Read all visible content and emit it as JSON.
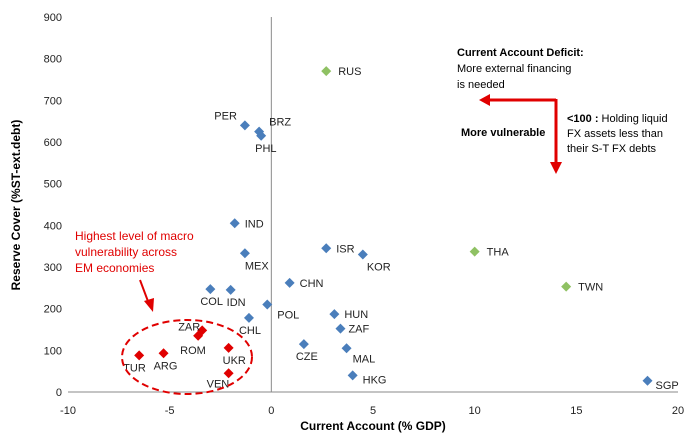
{
  "chart_data": {
    "type": "scatter",
    "xlabel": "Current Account (% GDP)",
    "ylabel": "Reserve Cover (%ST-ext.debt)",
    "xlim": [
      -10,
      20
    ],
    "ylim": [
      0,
      900
    ],
    "x_ticks": [
      "-10",
      "-5",
      "0",
      "5",
      "10",
      "15",
      "20"
    ],
    "y_ticks": [
      "0",
      "100",
      "200",
      "300",
      "400",
      "500",
      "600",
      "700",
      "800",
      "900"
    ],
    "grid": false,
    "colors": {
      "blue": "#4a7ebb",
      "green": "#8fc163",
      "red": "#e00000",
      "line": "#8a8a8a"
    },
    "points": [
      {
        "label": "RUS",
        "x": 2.7,
        "y": 770,
        "color": "green"
      },
      {
        "label": "PER",
        "x": -1.3,
        "y": 640,
        "color": "blue"
      },
      {
        "label": "BRZ",
        "x": -0.6,
        "y": 625,
        "color": "blue"
      },
      {
        "label": "PHL",
        "x": -0.5,
        "y": 615,
        "color": "blue"
      },
      {
        "label": "IND",
        "x": -1.8,
        "y": 405,
        "color": "blue"
      },
      {
        "label": "MEX",
        "x": -1.3,
        "y": 333,
        "color": "blue"
      },
      {
        "label": "ISR",
        "x": 2.7,
        "y": 345,
        "color": "blue"
      },
      {
        "label": "KOR",
        "x": 4.5,
        "y": 330,
        "color": "blue"
      },
      {
        "label": "THA",
        "x": 10.0,
        "y": 337,
        "color": "green"
      },
      {
        "label": "TWN",
        "x": 14.5,
        "y": 253,
        "color": "green"
      },
      {
        "label": "CHN",
        "x": 0.9,
        "y": 262,
        "color": "blue"
      },
      {
        "label": "COL",
        "x": -3.0,
        "y": 247,
        "color": "blue"
      },
      {
        "label": "IDN",
        "x": -2.0,
        "y": 245,
        "color": "blue"
      },
      {
        "label": "POL",
        "x": -0.2,
        "y": 210,
        "color": "blue"
      },
      {
        "label": "HUN",
        "x": 3.1,
        "y": 187,
        "color": "blue"
      },
      {
        "label": "CHL",
        "x": -1.1,
        "y": 178,
        "color": "blue"
      },
      {
        "label": "ZAF",
        "x": 3.4,
        "y": 152,
        "color": "blue"
      },
      {
        "label": "CZE",
        "x": 1.6,
        "y": 115,
        "color": "blue"
      },
      {
        "label": "MAL",
        "x": 3.7,
        "y": 105,
        "color": "blue"
      },
      {
        "label": "HKG",
        "x": 4.0,
        "y": 40,
        "color": "blue"
      },
      {
        "label": "SGP",
        "x": 18.5,
        "y": 27,
        "color": "blue"
      },
      {
        "label": "ZAR",
        "x": -3.4,
        "y": 148,
        "color": "red"
      },
      {
        "label": "ROM",
        "x": -3.6,
        "y": 135,
        "color": "red"
      },
      {
        "label": "UKR",
        "x": -2.1,
        "y": 106,
        "color": "red"
      },
      {
        "label": "TUR",
        "x": -6.5,
        "y": 88,
        "color": "red"
      },
      {
        "label": "ARG",
        "x": -5.3,
        "y": 93,
        "color": "red"
      },
      {
        "label": "VEN",
        "x": -2.1,
        "y": 45,
        "color": "red"
      }
    ],
    "annotations": {
      "deficit_title": "Current Account  Deficit:",
      "deficit_line1": "More external financing",
      "deficit_line2": "is needed",
      "more_vulnerable": "More vulnerable",
      "lt100_bold": "<100 :",
      "lt100_line1": " Holding liquid",
      "lt100_line2": "FX assets less than",
      "lt100_line3": "their S-T FX debts",
      "macro_line1": "Highest level of macro",
      "macro_line2": "vulnerability across",
      "macro_line3": "EM economies"
    }
  }
}
